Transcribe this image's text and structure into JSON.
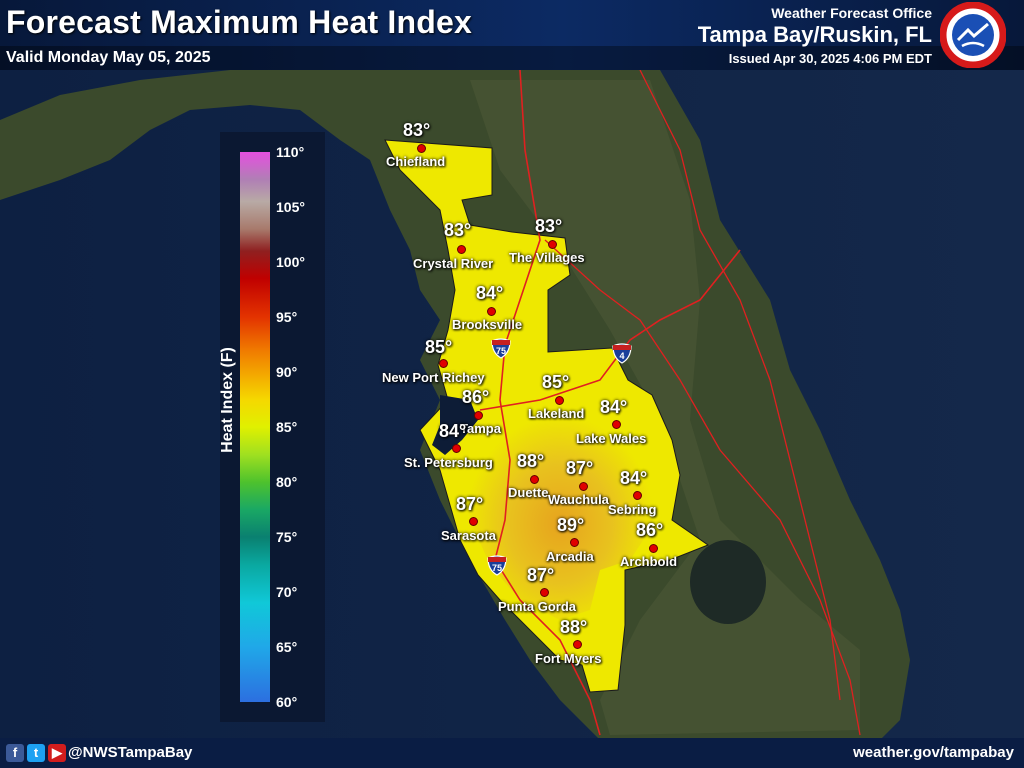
{
  "header": {
    "title": "Forecast Maximum Heat Index",
    "valid": "Valid Monday May 05, 2025",
    "office": "Weather Forecast Office",
    "location": "Tampa Bay/Ruskin, FL",
    "issued": "Issued Apr 30, 2025 4:06 PM EDT",
    "logo_icon": "nws-logo-icon"
  },
  "legend": {
    "title": "Heat Index (F)",
    "ticks": [
      "110°",
      "105°",
      "100°",
      "95°",
      "90°",
      "85°",
      "80°",
      "75°",
      "70°",
      "65°",
      "60°"
    ]
  },
  "cities": [
    {
      "name": "Chiefland",
      "temp": "83°"
    },
    {
      "name": "Crystal River",
      "temp": "83°"
    },
    {
      "name": "The Villages",
      "temp": "83°"
    },
    {
      "name": "Brooksville",
      "temp": "84°"
    },
    {
      "name": "New Port Richey",
      "temp": "85°"
    },
    {
      "name": "Tampa",
      "temp": "86°"
    },
    {
      "name": "Lakeland",
      "temp": "85°"
    },
    {
      "name": "Lake Wales",
      "temp": "84°"
    },
    {
      "name": "St. Petersburg",
      "temp": "84°"
    },
    {
      "name": "Duette",
      "temp": "88°"
    },
    {
      "name": "Wauchula",
      "temp": "87°"
    },
    {
      "name": "Sebring",
      "temp": "84°"
    },
    {
      "name": "Sarasota",
      "temp": "87°"
    },
    {
      "name": "Arcadia",
      "temp": "89°"
    },
    {
      "name": "Archbold",
      "temp": "86°"
    },
    {
      "name": "Punta Gorda",
      "temp": "87°"
    },
    {
      "name": "Fort Myers",
      "temp": "88°"
    }
  ],
  "shields": [
    "75",
    "4",
    "75"
  ],
  "footer": {
    "handle": "@NWSTampaBay",
    "site": "weather.gov/tampabay",
    "social_icons": [
      "facebook-icon",
      "twitter-icon",
      "youtube-icon"
    ]
  },
  "colors": {
    "header_bg": "#0c2a63",
    "city_dot": "#e00000",
    "forecast_yellow": "#f0e800",
    "forecast_orange": "#e8a818"
  }
}
